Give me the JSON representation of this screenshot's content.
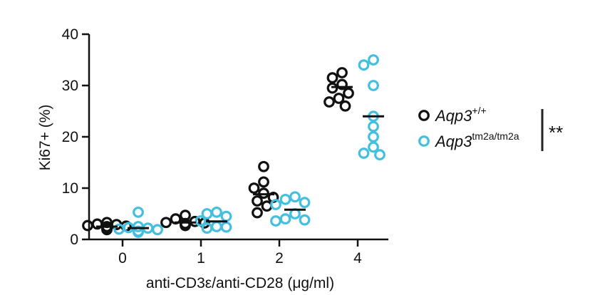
{
  "chart_data": {
    "type": "scatter",
    "title": "",
    "xlabel": "anti-CD3ε/anti-CD28 (μg/ml)",
    "ylabel": "Ki67+ (%)",
    "ylim": [
      0,
      40
    ],
    "yticks": [
      "0",
      "10",
      "20",
      "30",
      "40"
    ],
    "categories": [
      "0",
      "1",
      "2",
      "4"
    ],
    "grid": false,
    "legend_position": "right",
    "significance": "**",
    "series": [
      {
        "name": "Aqp3",
        "superscript": "+/+",
        "color": "#111111",
        "means": [
          2.5,
          3.3,
          8.8,
          29.7
        ],
        "points": [
          [
            3.3,
            2.9,
            2.6,
            2.5,
            2.2,
            2.0,
            1.9,
            2.7,
            3.0,
            2.3
          ],
          [
            4.7,
            4.0,
            3.5,
            3.2,
            2.9,
            2.7,
            3.1,
            3.3
          ],
          [
            14.2,
            11.2,
            10.0,
            9.0,
            8.2,
            7.5,
            6.5,
            5.2
          ],
          [
            32.5,
            31.5,
            30.2,
            29.5,
            28.5,
            27.5,
            26.8,
            26.0
          ]
        ]
      },
      {
        "name": "Aqp3",
        "superscript": "tm2a/tm2a",
        "color": "#45bfe0",
        "means": [
          2.2,
          3.5,
          5.8,
          24.0
        ],
        "points": [
          [
            5.3,
            2.5,
            2.2,
            1.9,
            1.6,
            1.4,
            1.5,
            2.0,
            2.3
          ],
          [
            5.3,
            5.0,
            4.5,
            3.6,
            2.5,
            2.2,
            2.4
          ],
          [
            8.3,
            7.8,
            7.2,
            6.8,
            5.0,
            3.8,
            3.6,
            4.0
          ],
          [
            35.0,
            34.0,
            30.0,
            24.0,
            22.0,
            20.0,
            18.0,
            16.8,
            16.5
          ]
        ]
      }
    ]
  }
}
